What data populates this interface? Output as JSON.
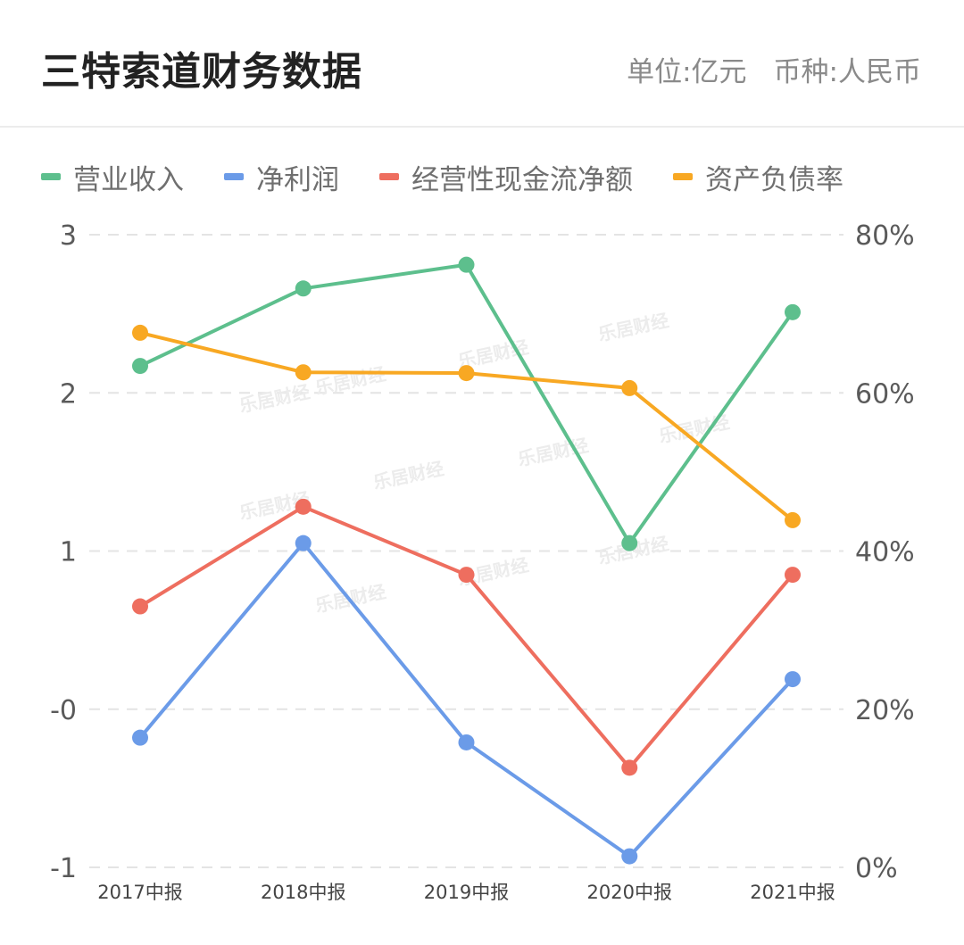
{
  "header": {
    "title": "三特索道财务数据",
    "unit": "单位:亿元",
    "currency": "币种:人民币"
  },
  "watermark": "乐居财经",
  "chart_data": {
    "type": "line",
    "categories": [
      "2017中报",
      "2018中报",
      "2019中报",
      "2020中报",
      "2021中报"
    ],
    "y_left": {
      "ticks": [
        "3",
        "2",
        "1",
        "-0",
        "-1"
      ],
      "ylim": [
        -1,
        3
      ]
    },
    "y_right": {
      "ticks": [
        "80%",
        "60%",
        "40%",
        "20%",
        "0%"
      ],
      "ylim": [
        0,
        80
      ]
    },
    "grid": "horizontal-dashed",
    "legend_position": "top-left",
    "series": [
      {
        "name": "营业收入",
        "color": "#5dbf8d",
        "axis": "left",
        "values": [
          2.17,
          2.66,
          2.81,
          1.05,
          2.51
        ]
      },
      {
        "name": "净利润",
        "color": "#6b9be8",
        "axis": "left",
        "values": [
          -0.18,
          1.05,
          -0.21,
          -0.93,
          0.19
        ]
      },
      {
        "name": "经营性现金流净额",
        "color": "#ee6e5f",
        "axis": "left",
        "values": [
          0.65,
          1.28,
          0.85,
          -0.37,
          0.85
        ]
      },
      {
        "name": "资产负债率",
        "color": "#f8a823",
        "axis": "right",
        "values": [
          67.6,
          62.6,
          62.5,
          60.6,
          43.9
        ]
      }
    ]
  }
}
